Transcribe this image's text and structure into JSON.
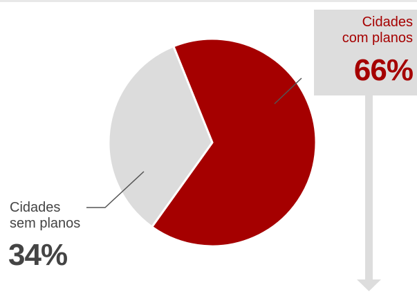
{
  "chart_data": {
    "type": "pie",
    "slices": [
      {
        "label_line1": "Cidades",
        "label_line2": "com planos",
        "value": 66,
        "value_label": "66%",
        "color": "#a50000",
        "text_color": "#a50000"
      },
      {
        "label_line1": "Cidades",
        "label_line2": "sem planos",
        "value": 34,
        "value_label": "34%",
        "color": "#dcdcdc",
        "text_color": "#444444"
      }
    ],
    "start_angle_deg": 338
  },
  "colors": {
    "label_box": "#dddddd",
    "arrow": "#dddddd",
    "leader_line": "#555555",
    "separator": "#ffffff"
  }
}
